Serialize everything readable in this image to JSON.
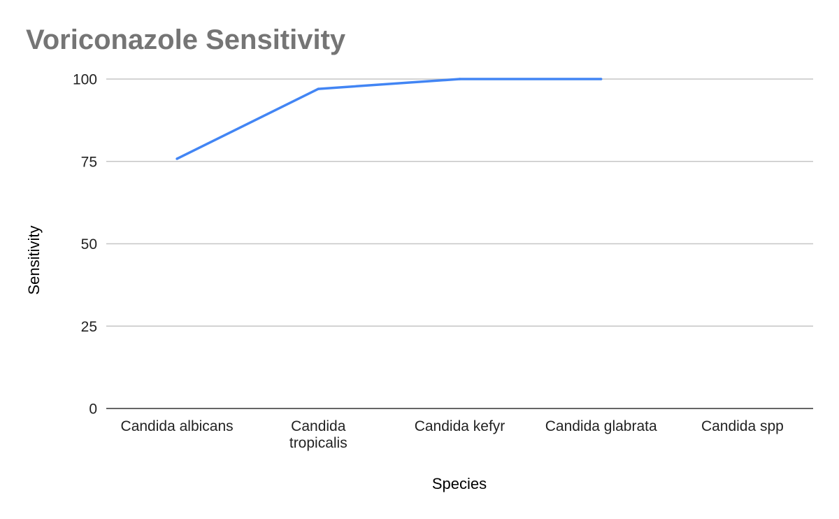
{
  "chart_data": {
    "type": "line",
    "title": "Voriconazole Sensitivity",
    "xlabel": "Species",
    "ylabel": "Sensitivity",
    "categories": [
      [
        "Candida albicans"
      ],
      [
        "Candida",
        "tropicalis"
      ],
      [
        "Candida kefyr"
      ],
      [
        "Candida glabrata"
      ],
      [
        "Candida spp"
      ]
    ],
    "series": [
      {
        "color": "#4285f4",
        "values": [
          75.8,
          97,
          100,
          100,
          null
        ]
      }
    ],
    "ylim": [
      0,
      100
    ],
    "yticks": [
      0,
      25,
      50,
      75,
      100
    ],
    "grid": true,
    "legend": "none"
  }
}
